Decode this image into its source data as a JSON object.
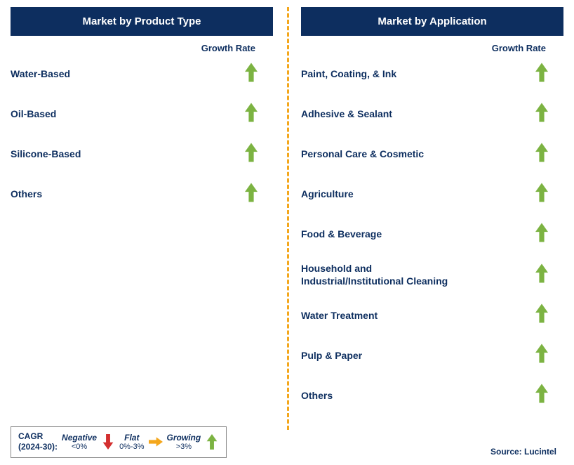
{
  "colors": {
    "header_bg": "#0d2e5f",
    "header_text": "#ffffff",
    "primary_text": "#0d2e5f",
    "arrow_green": "#7cb342",
    "arrow_red": "#d32f2f",
    "arrow_yellow": "#f4a71c",
    "divider": "#f4a71c",
    "legend_border": "#888888"
  },
  "arrow": {
    "width": 18,
    "height": 30
  },
  "left": {
    "header": "Market by Product Type",
    "subheader": "Growth Rate",
    "items": [
      {
        "label": "Water-Based",
        "growth": "growing"
      },
      {
        "label": "Oil-Based",
        "growth": "growing"
      },
      {
        "label": "Silicone-Based",
        "growth": "growing"
      },
      {
        "label": "Others",
        "growth": "growing"
      }
    ]
  },
  "right": {
    "header": "Market by Application",
    "subheader": "Growth Rate",
    "items": [
      {
        "label": "Paint, Coating, & Ink",
        "growth": "growing"
      },
      {
        "label": "Adhesive & Sealant",
        "growth": "growing"
      },
      {
        "label": "Personal Care & Cosmetic",
        "growth": "growing"
      },
      {
        "label": "Agriculture",
        "growth": "growing"
      },
      {
        "label": "Food & Beverage",
        "growth": "growing"
      },
      {
        "label": "Household and Industrial/Institutional Cleaning",
        "growth": "growing"
      },
      {
        "label": "Water Treatment",
        "growth": "growing"
      },
      {
        "label": "Pulp & Paper",
        "growth": "growing"
      },
      {
        "label": "Others",
        "growth": "growing"
      }
    ]
  },
  "legend": {
    "cagr_label_line1": "CAGR",
    "cagr_label_line2": "(2024-30):",
    "negative_label": "Negative",
    "negative_sub": "<0%",
    "flat_label": "Flat",
    "flat_sub": "0%-3%",
    "growing_label": "Growing",
    "growing_sub": ">3%"
  },
  "source": "Source: Lucintel"
}
